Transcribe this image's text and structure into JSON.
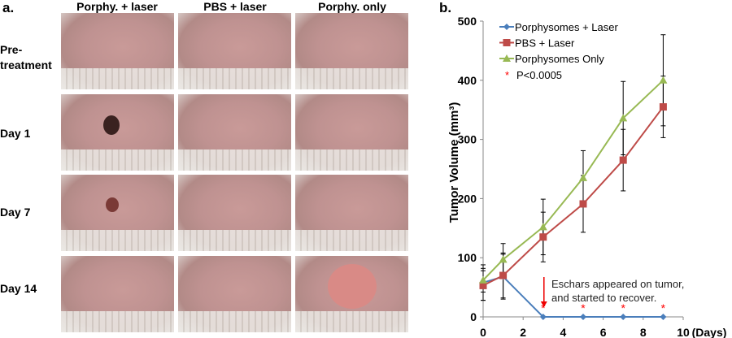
{
  "panel_a": {
    "label": "a.",
    "columns": [
      "Porphy. + laser",
      "PBS + laser",
      "Porphy. only"
    ],
    "rows": [
      "Pre-\ntreatment",
      "Day 1",
      "Day 7",
      "Day 14"
    ]
  },
  "panel_b": {
    "label": "b."
  },
  "chart_data": {
    "type": "line",
    "title": "",
    "xlabel": "(Days)",
    "ylabel": "Tumor Volume (mm³)",
    "xlim": [
      0,
      10
    ],
    "ylim": [
      0,
      500
    ],
    "xticks": [
      0,
      2,
      4,
      6,
      8,
      10
    ],
    "yticks": [
      0,
      100,
      200,
      300,
      400,
      500
    ],
    "x": [
      0,
      1,
      3,
      5,
      7,
      9
    ],
    "legend_position": "top-left",
    "series": [
      {
        "name": "Porphysomes + Laser",
        "color": "#4a7ebb",
        "marker": "diamond",
        "values": [
          58,
          68,
          0,
          0,
          0,
          0
        ],
        "errors": [
          30,
          38,
          0,
          0,
          0,
          0
        ]
      },
      {
        "name": "PBS + Laser",
        "color": "#be4b48",
        "marker": "square",
        "values": [
          53,
          70,
          135,
          191,
          265,
          355
        ],
        "errors": [
          25,
          38,
          42,
          48,
          52,
          52
        ]
      },
      {
        "name": "Porphysomes Only",
        "color": "#98b954",
        "marker": "triangle",
        "values": [
          62,
          97,
          152,
          235,
          336,
          400
        ],
        "errors": [
          20,
          27,
          47,
          46,
          62,
          77
        ]
      }
    ],
    "significance": {
      "label": "P<0.0005",
      "symbol": "*",
      "color": "#ff0000",
      "x": [
        3,
        5,
        7,
        9
      ]
    },
    "annotation": {
      "text_line1": "Eschars appeared on tumor,",
      "text_line2": "and started to recover.",
      "x": 3
    }
  }
}
